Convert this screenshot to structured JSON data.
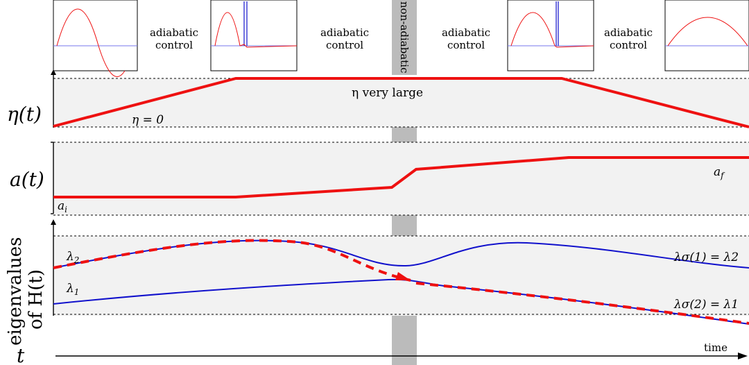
{
  "phases": {
    "adiabatic_1": [
      "adiabatic",
      "control"
    ],
    "adiabatic_2": [
      "adiabatic",
      "control"
    ],
    "adiabatic_3": [
      "adiabatic",
      "control"
    ],
    "adiabatic_4": [
      "adiabatic",
      "control"
    ],
    "non_adiabatic": "non-adiabatic"
  },
  "eta_panel": {
    "ylabel": "η(t)",
    "label_zero": "η = 0",
    "label_large": "η very large"
  },
  "a_panel": {
    "ylabel": "a(t)",
    "label_initial": "a",
    "label_initial_sub": "i",
    "label_final": "a",
    "label_final_sub": "f"
  },
  "eigen_panel": {
    "ylabel_line1": "eigenvalues",
    "ylabel_line2": "of H(t)",
    "lambda2": "λ",
    "lambda2_sub": "2",
    "lambda1": "λ",
    "lambda1_sub": "1",
    "end_top": "λσ(1) = λ2",
    "end_bottom": "λσ(2) = λ1"
  },
  "time_axis": {
    "symbol": "t",
    "label": "time"
  },
  "colors": {
    "red": "#ee1111",
    "blue": "#1111cc",
    "band": "#f2f2f2",
    "nonadiabatic": "#bbbbbb"
  }
}
